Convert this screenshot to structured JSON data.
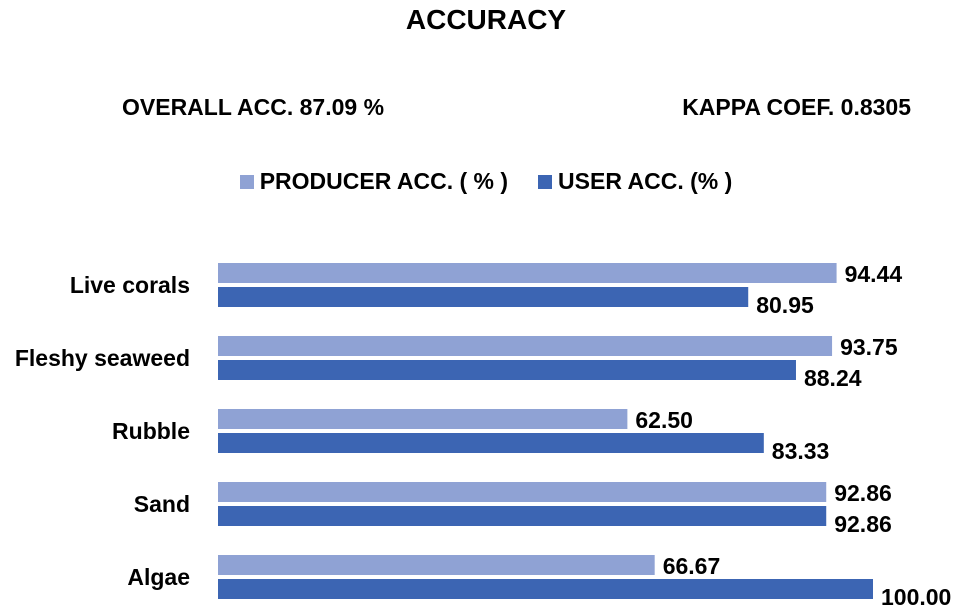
{
  "title": "ACCURACY",
  "overall_accuracy": "OVERALL ACC. 87.09  %",
  "kappa": "KAPPA COEF. 0.8305",
  "colors": {
    "producer": "#8FA2D4",
    "user": "#3C65B3"
  },
  "chart_data": {
    "type": "bar",
    "orientation": "horizontal",
    "title": "ACCURACY",
    "categories": [
      "Live corals",
      "Fleshy seaweed",
      "Rubble",
      "Sand",
      "Algae"
    ],
    "series": [
      {
        "name": "PRODUCER ACC.  ( % )",
        "values": [
          94.44,
          93.75,
          62.5,
          92.86,
          66.67
        ]
      },
      {
        "name": "USER  ACC. (% )",
        "values": [
          80.95,
          88.24,
          83.33,
          92.86,
          100.0
        ]
      }
    ],
    "value_labels": [
      [
        "94.44",
        "93.75",
        "62.50",
        "92.86",
        "66.67"
      ],
      [
        "80.95",
        "88.24",
        "83.33",
        "92.86",
        "100.00"
      ]
    ],
    "xlim": [
      0,
      100
    ],
    "grid": false,
    "legend": "top-center"
  }
}
